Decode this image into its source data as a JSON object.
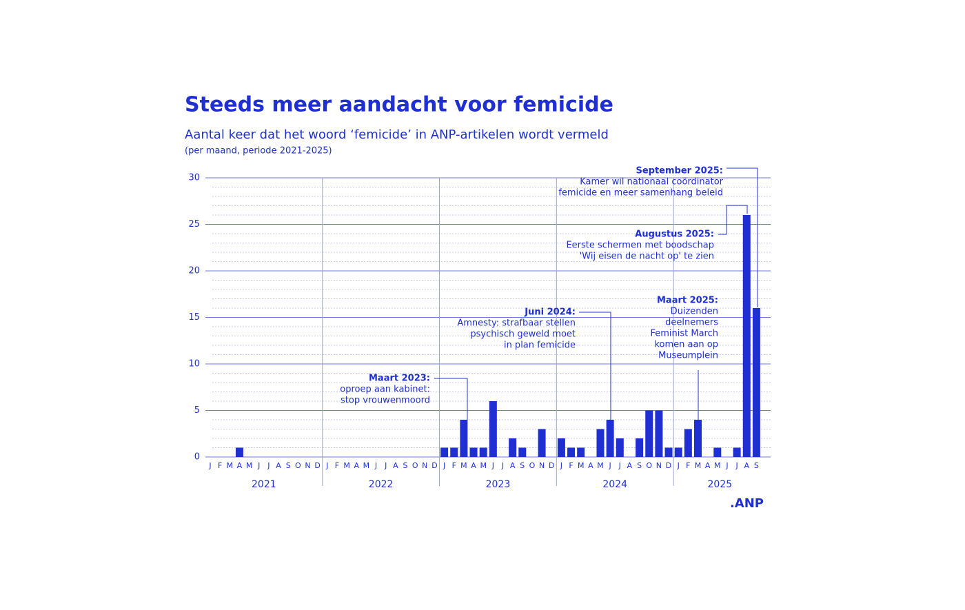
{
  "chart_data": {
    "type": "bar",
    "title": "Steeds meer aandacht voor femicide",
    "subtitle": "Aantal keer dat het woord ‘femicide’ in ANP-artikelen wordt vermeld",
    "note": "(per maand, periode 2021-2025)",
    "source": ".ANP",
    "color": "#1f2fd1",
    "grid": true,
    "categories": [
      "J",
      "F",
      "M",
      "A",
      "M",
      "J",
      "J",
      "A",
      "S",
      "O",
      "N",
      "D",
      "J",
      "F",
      "M",
      "A",
      "M",
      "J",
      "J",
      "A",
      "S",
      "O",
      "N",
      "D",
      "J",
      "F",
      "M",
      "A",
      "M",
      "J",
      "J",
      "A",
      "S",
      "O",
      "N",
      "D",
      "J",
      "F",
      "M",
      "A",
      "M",
      "J",
      "J",
      "A",
      "S",
      "O",
      "N",
      "D",
      "J",
      "F",
      "M",
      "A",
      "M",
      "J",
      "J",
      "A",
      "S"
    ],
    "values": [
      0,
      0,
      0,
      1,
      0,
      0,
      0,
      0,
      0,
      0,
      0,
      0,
      0,
      0,
      0,
      0,
      0,
      0,
      0,
      0,
      0,
      0,
      0,
      0,
      1,
      1,
      4,
      1,
      1,
      6,
      0,
      2,
      1,
      0,
      3,
      0,
      2,
      1,
      1,
      0,
      3,
      4,
      2,
      0,
      2,
      5,
      5,
      1,
      1,
      3,
      4,
      0,
      1,
      0,
      1,
      26,
      16
    ],
    "years": [
      "2021",
      "2022",
      "2023",
      "2024",
      "2025"
    ],
    "ylim": [
      0,
      30
    ],
    "yticks": [
      0,
      5,
      10,
      15,
      20,
      25,
      30
    ],
    "annotations": [
      {
        "title": "Maart 2023:",
        "lines": [
          "oproep aan kabinet:",
          "stop vrouwenmoord"
        ]
      },
      {
        "title": "Juni 2024:",
        "lines": [
          "Amnesty: strafbaar stellen",
          "psychisch geweld moet",
          "in plan femicide"
        ]
      },
      {
        "title": "Maart 2025:",
        "lines": [
          "Duizenden",
          "deelnemers",
          "Feminist March",
          "komen aan op",
          "Museumplein"
        ]
      },
      {
        "title": "Augustus 2025:",
        "lines": [
          "Eerste schermen met boodschap",
          "'Wij eisen de nacht op' te zien"
        ]
      },
      {
        "title": "September 2025:",
        "lines": [
          "Kamer wil nationaal coördinator",
          "femicide en meer samenhang beleid"
        ]
      }
    ]
  }
}
